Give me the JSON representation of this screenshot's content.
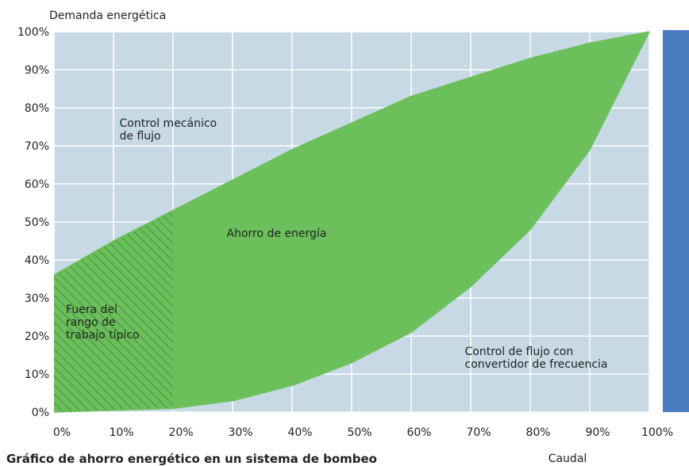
{
  "chart_data": {
    "type": "area_between",
    "y_axis_label": "Demanda energética",
    "x_axis_label": "Caudal",
    "caption": "Gráfico de ahorro energético en un sistema de bombeo",
    "x": [
      0,
      10,
      20,
      30,
      40,
      50,
      60,
      70,
      80,
      90,
      100
    ],
    "series": [
      {
        "color": "#6cc05c",
        "values": [
          36,
          45,
          53,
          61,
          69,
          76,
          83,
          88,
          93,
          97,
          100
        ]
      },
      {
        "color": "#6cc05c",
        "values": [
          0,
          0.5,
          1,
          3,
          7,
          13,
          21,
          33,
          48,
          69,
          100
        ]
      }
    ],
    "hatch_range": [
      0,
      20
    ],
    "annotations": [
      {
        "lines": [
          "Control mecánico",
          "de flujo"
        ],
        "x": 11,
        "y": 75
      },
      {
        "lines": [
          "Ahorro de energía"
        ],
        "x": 29,
        "y": 46
      },
      {
        "lines": [
          "Fuera del",
          "rango de",
          "trabajo típico"
        ],
        "x": 2,
        "y": 26
      },
      {
        "lines": [
          "Control de flujo con",
          "convertidor de frecuencia"
        ],
        "x": 69,
        "y": 15
      }
    ],
    "xlim": [
      0,
      100
    ],
    "ylim": [
      0,
      100
    ],
    "xticks": [
      {
        "value": 0,
        "label": "0%"
      },
      {
        "value": 10,
        "label": "10%"
      },
      {
        "value": 20,
        "label": "20%"
      },
      {
        "value": 30,
        "label": "30%"
      },
      {
        "value": 40,
        "label": "40%"
      },
      {
        "value": 50,
        "label": "50%"
      },
      {
        "value": 60,
        "label": "60%"
      },
      {
        "value": 70,
        "label": "70%"
      },
      {
        "value": 80,
        "label": "80%"
      },
      {
        "value": 90,
        "label": "90%"
      },
      {
        "value": 100,
        "label": "100%"
      }
    ],
    "yticks": [
      {
        "value": 0,
        "label": "0%"
      },
      {
        "value": 10,
        "label": "10%"
      },
      {
        "value": 20,
        "label": "20%"
      },
      {
        "value": 30,
        "label": "30%"
      },
      {
        "value": 40,
        "label": "40%"
      },
      {
        "value": 50,
        "label": "50%"
      },
      {
        "value": 60,
        "label": "60%"
      },
      {
        "value": 70,
        "label": "70%"
      },
      {
        "value": 80,
        "label": "80%"
      },
      {
        "value": 90,
        "label": "90%"
      },
      {
        "value": 100,
        "label": "100%"
      }
    ],
    "grid": true
  }
}
